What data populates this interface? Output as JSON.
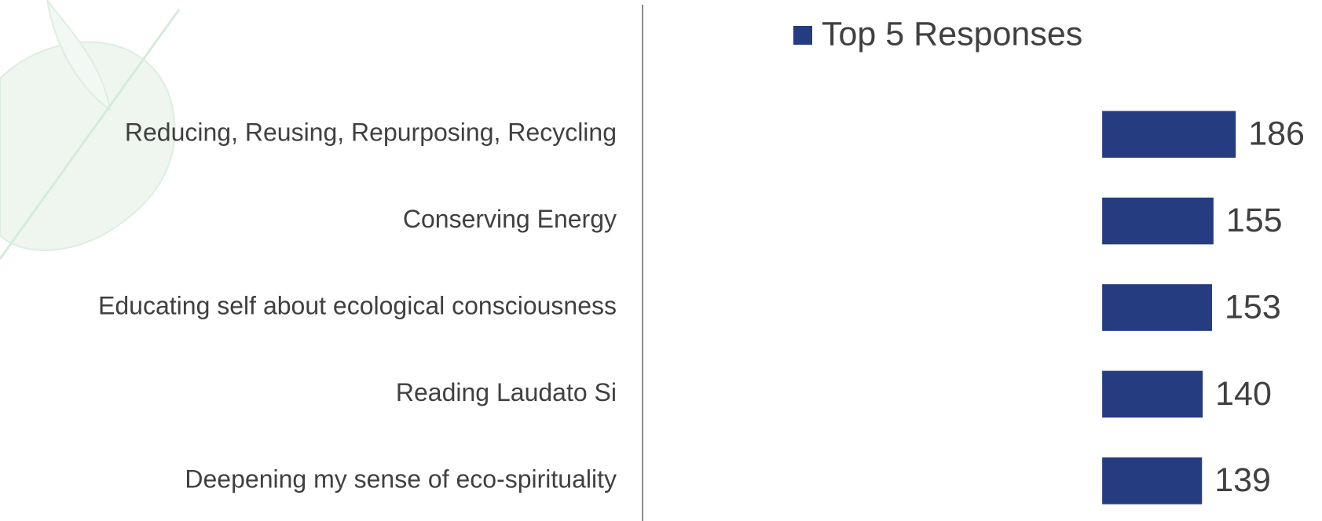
{
  "chart_data": {
    "type": "bar",
    "orientation": "horizontal",
    "categories": [
      "Reducing, Reusing, Repurposing, Recycling",
      "Conserving Energy",
      "Educating self about ecological consciousness",
      "Reading Laudato Si",
      "Deepening my sense of eco-spirituality"
    ],
    "series": [
      {
        "name": "Top 5 Responses",
        "color": "#263c80",
        "values": [
          186,
          155,
          153,
          140,
          139
        ]
      }
    ],
    "xlim": [
      -640,
      200
    ],
    "legend": "top"
  }
}
